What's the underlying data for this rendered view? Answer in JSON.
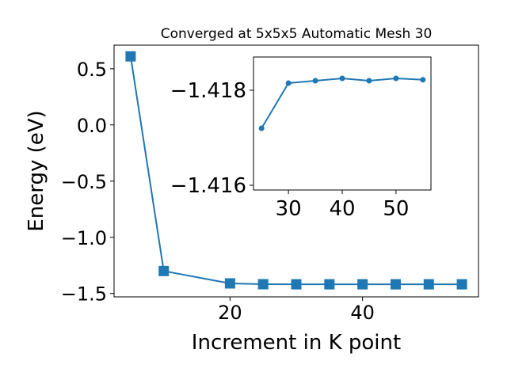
{
  "chart_data": [
    {
      "type": "line",
      "title": "Converged at 5x5x5 Automatic Mesh 30",
      "xlabel": "Increment in K point",
      "ylabel": "Energy (eV)",
      "xlim": [
        2.5,
        57.5
      ],
      "ylim": [
        -1.53,
        0.71
      ],
      "xticks": [
        20,
        40
      ],
      "xtick_labels": [
        "20",
        "40"
      ],
      "yticks": [
        0.5,
        0.0,
        -0.5,
        -1.0,
        -1.5
      ],
      "ytick_labels": [
        "0.5",
        "0.0",
        "−0.5",
        "−1.0",
        "−1.5"
      ],
      "marker": "square",
      "color": "#1f77b4",
      "grid": false,
      "series": [
        {
          "x": [
            5,
            10,
            20,
            25,
            30,
            35,
            40,
            45,
            50,
            55
          ],
          "y": [
            0.61,
            -1.3,
            -1.41,
            -1.4172,
            -1.4181,
            -1.418,
            -1.418,
            -1.418,
            -1.418,
            -1.418
          ]
        }
      ]
    },
    {
      "type": "line",
      "title": "",
      "xlabel": "",
      "ylabel": "",
      "inset": true,
      "xlim": [
        23.5,
        56.5
      ],
      "ylim": [
        -1.4187,
        -1.4159
      ],
      "y_inverted": true,
      "xticks": [
        30,
        40,
        50
      ],
      "xtick_labels": [
        "30",
        "40",
        "50"
      ],
      "yticks": [
        -1.418,
        -1.416
      ],
      "ytick_labels": [
        "−1.418",
        "−1.416"
      ],
      "marker": "circle",
      "color": "#1f77b4",
      "grid": false,
      "series": [
        {
          "x": [
            25,
            30,
            35,
            40,
            45,
            50,
            55
          ],
          "y": [
            -1.4172,
            -1.41815,
            -1.4182,
            -1.41825,
            -1.4182,
            -1.41825,
            -1.41822
          ]
        }
      ]
    }
  ]
}
